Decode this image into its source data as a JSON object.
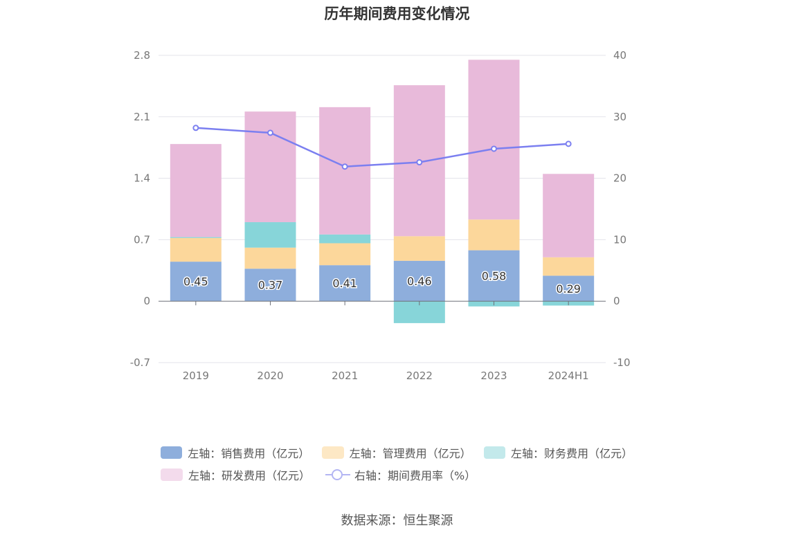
{
  "chart_data": {
    "type": "bar",
    "title": "历年期间费用变化情况",
    "categories": [
      "2019",
      "2020",
      "2021",
      "2022",
      "2023",
      "2024H1"
    ],
    "stacked": true,
    "series": [
      {
        "name": "左轴：销售费用（亿元）",
        "axis": "left",
        "color": "#8eaedc",
        "values": [
          0.45,
          0.37,
          0.41,
          0.46,
          0.58,
          0.29
        ],
        "labels": [
          "0.45",
          "0.37",
          "0.41",
          "0.46",
          "0.58",
          "0.29"
        ]
      },
      {
        "name": "左轴：管理费用（亿元）",
        "axis": "left",
        "color": "#fcd79b",
        "values": [
          0.27,
          0.24,
          0.25,
          0.28,
          0.35,
          0.21
        ]
      },
      {
        "name": "左轴：财务费用（亿元）",
        "axis": "left",
        "color": "#87d5d9",
        "values": [
          0.01,
          0.29,
          0.1,
          -0.25,
          -0.06,
          -0.05
        ]
      },
      {
        "name": "左轴：研发费用（亿元）",
        "axis": "left",
        "color": "#e8bada",
        "values": [
          1.06,
          1.26,
          1.45,
          1.72,
          1.82,
          0.95
        ]
      }
    ],
    "line_series": [
      {
        "name": "右轴：期间费用率（%）",
        "axis": "right",
        "color": "#7b7ff0",
        "values": [
          28.2,
          27.4,
          21.9,
          22.6,
          24.8,
          25.6
        ]
      }
    ],
    "legend_display": [
      {
        "name": "左轴：销售费用（亿元）",
        "color": "#8eaedc",
        "kind": "bar"
      },
      {
        "name": "左轴：管理费用（亿元）",
        "color": "#fde8c5",
        "kind": "bar"
      },
      {
        "name": "左轴：财务费用（亿元）",
        "color": "#c3e9eb",
        "kind": "bar"
      },
      {
        "name": "左轴：研发费用（亿元）",
        "color": "#f3dbec",
        "kind": "bar"
      },
      {
        "name": "右轴：期间费用率（%）",
        "color": "#b3b5f3",
        "kind": "line"
      }
    ],
    "y_left": {
      "ticks": [
        -0.7,
        0,
        0.7,
        1.4,
        2.1,
        2.8
      ],
      "tick_labels": [
        "-0.7",
        "0",
        "0.7",
        "1.4",
        "2.1",
        "2.8"
      ],
      "range": [
        -0.7,
        2.8
      ]
    },
    "y_right": {
      "ticks": [
        -10,
        0,
        10,
        20,
        30,
        40
      ],
      "tick_labels": [
        "-10",
        "0",
        "10",
        "20",
        "30",
        "40"
      ],
      "range": [
        -10,
        40
      ]
    },
    "grid": true,
    "legend_position": "bottom"
  },
  "source": "数据来源：恒生聚源"
}
